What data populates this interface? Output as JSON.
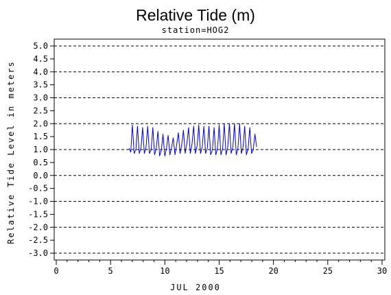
{
  "chart_data": {
    "type": "line",
    "title": "Relative Tide (m)",
    "subtitle": "station=HOG2",
    "xlabel": "JUL 2000",
    "ylabel": "Relative Tide Level in meters",
    "xlim": [
      0,
      30
    ],
    "ylim": [
      -3.0,
      5.0
    ],
    "x_ticks": [
      "0",
      "5",
      "10",
      "15",
      "20",
      "25",
      "30"
    ],
    "y_ticks": [
      "5.0",
      "4.5",
      "4.0",
      "3.5",
      "3.0",
      "2.5",
      "2.0",
      "1.5",
      "1.0",
      "0.5",
      "0.0",
      "-0.5",
      "-1.0",
      "-1.5",
      "-2.0",
      "-2.5",
      "-3.0"
    ],
    "y_gridlines": [
      5.0,
      4.0,
      3.0,
      2.0,
      1.0,
      0.0,
      -1.0,
      -2.0,
      -3.0
    ],
    "grid": "horizontal dashed at whole meters",
    "line_color": "#0000cc",
    "series": [
      {
        "x": [
          6.7,
          6.86,
          7.01,
          7.17,
          7.33,
          7.48,
          7.64,
          7.8,
          7.95,
          8.11,
          8.27,
          8.42,
          8.58,
          8.74,
          8.89,
          9.05,
          9.21,
          9.36,
          9.52,
          9.68,
          9.83,
          9.99,
          10.15,
          10.3,
          10.46,
          10.62,
          10.77,
          10.93,
          11.09,
          11.24,
          11.4,
          11.56,
          11.71,
          11.87,
          12.03,
          12.18,
          12.34,
          12.5,
          12.65,
          12.81,
          12.97,
          13.12,
          13.28,
          13.44,
          13.59,
          13.75,
          13.91,
          14.06,
          14.22,
          14.38,
          14.53,
          14.69,
          14.85,
          15.0,
          15.16,
          15.32,
          15.47,
          15.63,
          15.79,
          15.94,
          16.1,
          16.26,
          16.41,
          16.57,
          16.73,
          16.88,
          17.04,
          17.2,
          17.35,
          17.51,
          17.67,
          17.82,
          17.98,
          18.14,
          18.29,
          18.45
        ],
        "y": [
          1.05,
          0.9,
          1.95,
          0.85,
          1.0,
          1.9,
          0.85,
          1.05,
          1.85,
          0.85,
          1.1,
          1.9,
          0.85,
          1.0,
          1.85,
          0.8,
          1.05,
          1.7,
          0.75,
          1.0,
          1.6,
          0.75,
          1.05,
          1.55,
          0.8,
          1.1,
          1.45,
          0.8,
          1.2,
          1.65,
          0.85,
          1.2,
          1.75,
          0.85,
          1.25,
          1.85,
          0.85,
          1.2,
          1.9,
          0.85,
          1.15,
          1.95,
          0.85,
          1.1,
          1.9,
          0.85,
          1.05,
          1.9,
          0.8,
          1.0,
          1.85,
          0.8,
          1.05,
          1.95,
          0.8,
          1.05,
          2.0,
          0.8,
          1.1,
          2.0,
          0.85,
          1.1,
          2.0,
          0.8,
          1.05,
          2.0,
          0.85,
          1.1,
          1.9,
          0.8,
          1.05,
          1.85,
          0.85,
          1.0,
          1.6,
          1.1
        ]
      }
    ]
  }
}
